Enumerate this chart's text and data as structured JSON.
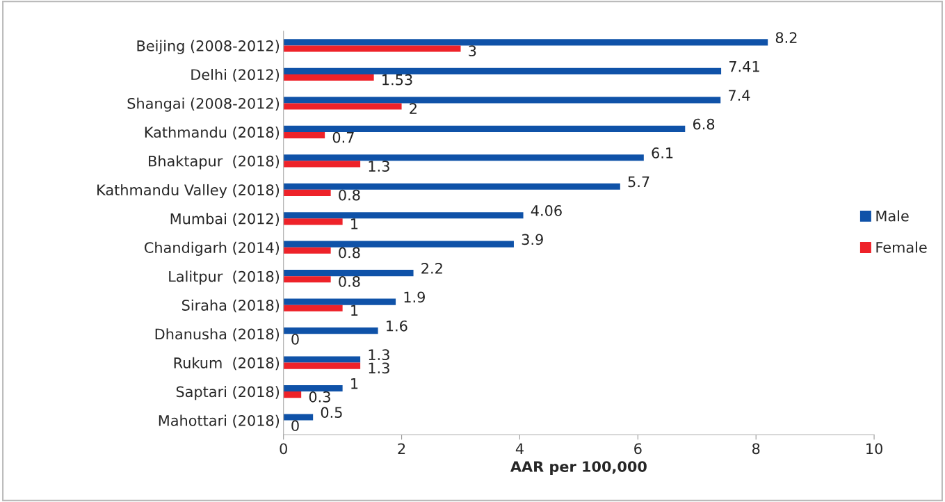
{
  "chart_data": {
    "type": "bar",
    "orientation": "horizontal",
    "xlabel": "AAR per 100,000",
    "categories": [
      "Beijing (2008-2012)",
      "Delhi (2012)",
      "Shangai (2008-2012)",
      "Kathmandu (2018)",
      "Bhaktapur  (2018)",
      "Kathmandu Valley (2018)",
      "Mumbai (2012)",
      "Chandigarh (2014)",
      "Lalitpur  (2018)",
      "Siraha (2018)",
      "Dhanusha (2018)",
      "Rukum  (2018)",
      "Saptari (2018)",
      "Mahottari (2018)"
    ],
    "series": [
      {
        "name": "Male",
        "color": "#0f52a8",
        "values": [
          8.2,
          7.41,
          7.4,
          6.8,
          6.1,
          5.7,
          4.06,
          3.9,
          2.2,
          1.9,
          1.6,
          1.3,
          1,
          0.5
        ]
      },
      {
        "name": "Female",
        "color": "#ee2229",
        "values": [
          3,
          1.53,
          2,
          0.7,
          1.3,
          0.8,
          1,
          0.8,
          0.8,
          1,
          0,
          1.3,
          0.3,
          0
        ]
      }
    ],
    "xlim": [
      0,
      10
    ],
    "xticks": [
      0,
      2,
      4,
      6,
      8,
      10
    ],
    "data_labels": true,
    "legend": "right",
    "grid": false
  }
}
